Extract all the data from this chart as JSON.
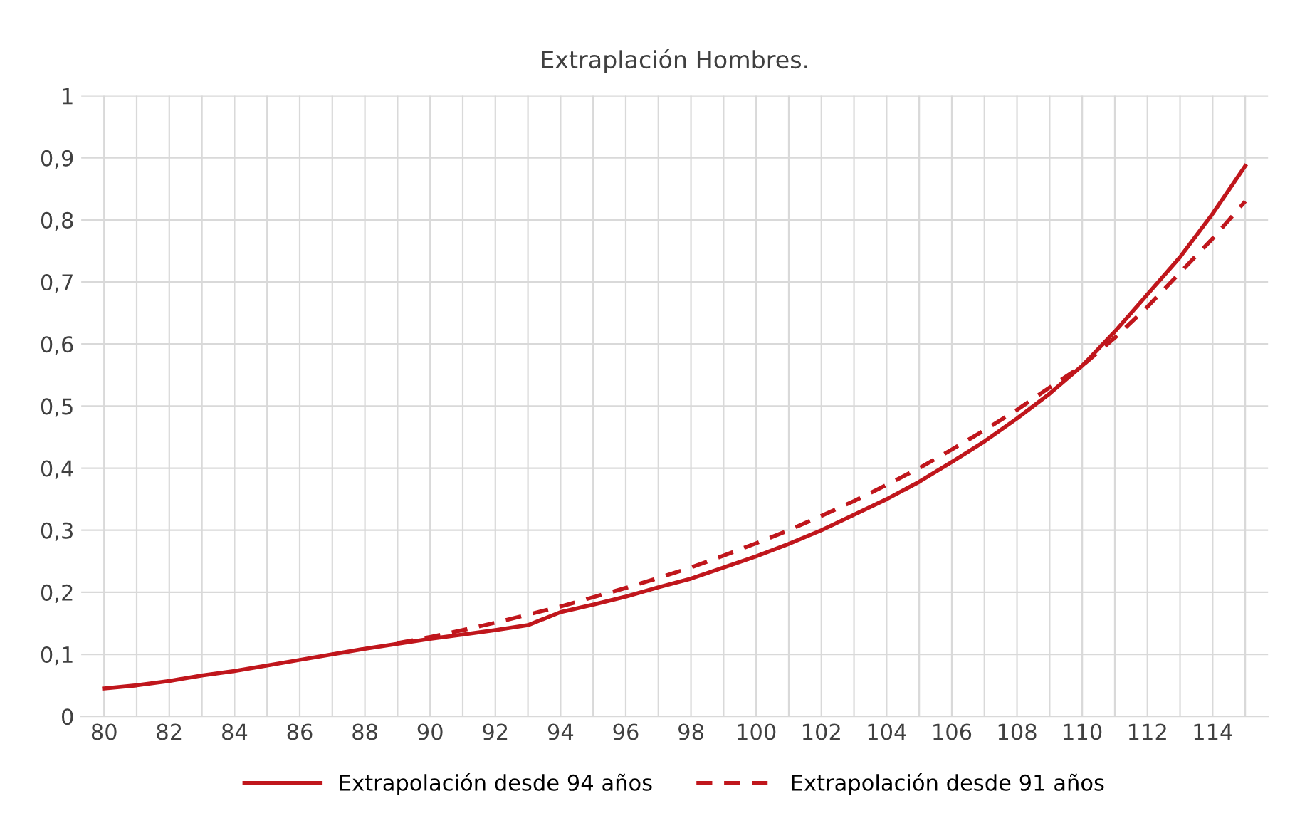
{
  "chart_data": {
    "type": "line",
    "title": "Extraplación Hombres.",
    "x": [
      80,
      81,
      82,
      83,
      84,
      85,
      86,
      87,
      88,
      89,
      90,
      91,
      92,
      93,
      94,
      95,
      96,
      97,
      98,
      99,
      100,
      101,
      102,
      103,
      104,
      105,
      106,
      107,
      108,
      109,
      110,
      111,
      112,
      113,
      114,
      115
    ],
    "series": [
      {
        "name": "Extrapolación desde 94 años",
        "color": "#c0161c",
        "line_style": "solid",
        "values": [
          0.045,
          0.05,
          0.057,
          0.066,
          0.073,
          0.082,
          0.091,
          0.1,
          0.109,
          0.117,
          0.125,
          0.132,
          0.139,
          0.147,
          0.168,
          0.18,
          0.193,
          0.208,
          0.222,
          0.24,
          0.258,
          0.278,
          0.3,
          0.325,
          0.35,
          0.378,
          0.41,
          0.443,
          0.48,
          0.52,
          0.565,
          0.62,
          0.68,
          0.74,
          0.81,
          0.887
        ]
      },
      {
        "name": "Extrapolación desde 91 años",
        "color": "#c0161c",
        "line_style": "dashed",
        "x": [
          89,
          90,
          91,
          92,
          93,
          94,
          95,
          96,
          97,
          98,
          99,
          100,
          101,
          102,
          103,
          104,
          105,
          106,
          107,
          108,
          109,
          110,
          111,
          112,
          113,
          114,
          115
        ],
        "values": [
          0.118,
          0.128,
          0.139,
          0.151,
          0.164,
          0.177,
          0.192,
          0.207,
          0.223,
          0.24,
          0.259,
          0.279,
          0.3,
          0.323,
          0.347,
          0.373,
          0.4,
          0.43,
          0.461,
          0.494,
          0.53,
          0.565,
          0.61,
          0.66,
          0.715,
          0.77,
          0.83
        ]
      }
    ],
    "xlim": [
      79.3,
      115.7
    ],
    "xticks": [
      80,
      {
        "value": 81,
        "label": null
      },
      82,
      {
        "value": 83,
        "label": null
      },
      84,
      {
        "value": 85,
        "label": null
      },
      86,
      {
        "value": 87,
        "label": null
      },
      88,
      {
        "value": 89,
        "label": null
      },
      90,
      {
        "value": 91,
        "label": null
      },
      92,
      {
        "value": 93,
        "label": null
      },
      94,
      {
        "value": 95,
        "label": null
      },
      96,
      {
        "value": 97,
        "label": null
      },
      98,
      {
        "value": 99,
        "label": null
      },
      100,
      {
        "value": 101,
        "label": null
      },
      102,
      {
        "value": 103,
        "label": null
      },
      104,
      {
        "value": 105,
        "label": null
      },
      106,
      {
        "value": 107,
        "label": null
      },
      108,
      {
        "value": 109,
        "label": null
      },
      110,
      {
        "value": 111,
        "label": null
      },
      112,
      {
        "value": 113,
        "label": null
      },
      114,
      {
        "value": 115,
        "label": null
      }
    ],
    "ylim": [
      0,
      1
    ],
    "yticks": [
      0,
      {
        "value": 0.1,
        "label": "0,1"
      },
      {
        "value": 0.2,
        "label": "0,2"
      },
      {
        "value": 0.3,
        "label": "0,3"
      },
      {
        "value": 0.4,
        "label": "0,4"
      },
      {
        "value": 0.5,
        "label": "0,5"
      },
      {
        "value": 0.6,
        "label": "0,6"
      },
      {
        "value": 0.7,
        "label": "0,7"
      },
      {
        "value": 0.8,
        "label": "0,8"
      },
      {
        "value": 0.9,
        "label": "0,9"
      },
      1
    ],
    "grid": true,
    "legend": "bottom",
    "marker": "none"
  }
}
